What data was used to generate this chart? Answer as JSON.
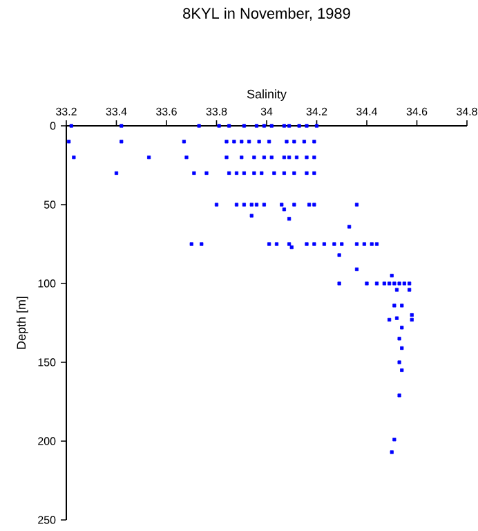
{
  "chart_data": {
    "type": "scatter",
    "title": "8KYL in November, 1989",
    "xlabel": "Salinity",
    "ylabel": "Depth [m]",
    "color": "#0000ff",
    "marker": "square",
    "grid": false,
    "x": [
      33.22,
      33.42,
      33.73,
      33.81,
      33.85,
      33.91,
      33.96,
      33.99,
      34.02,
      34.07,
      34.09,
      34.13,
      34.16,
      34.2,
      33.21,
      33.42,
      33.67,
      33.84,
      33.87,
      33.9,
      33.93,
      33.97,
      34.01,
      34.08,
      34.11,
      34.15,
      34.19,
      33.23,
      33.53,
      33.68,
      33.84,
      33.9,
      33.95,
      33.99,
      34.02,
      34.07,
      34.09,
      34.12,
      34.16,
      34.19,
      33.4,
      33.71,
      33.76,
      33.85,
      33.88,
      33.91,
      33.95,
      33.98,
      34.03,
      34.07,
      34.11,
      34.16,
      34.19,
      33.8,
      33.88,
      33.91,
      33.94,
      33.96,
      33.99,
      34.06,
      34.11,
      34.17,
      34.19,
      34.36,
      34.07,
      33.94,
      34.09,
      34.33,
      33.7,
      33.74,
      34.01,
      34.04,
      34.09,
      34.16,
      34.19,
      34.23,
      34.27,
      34.3,
      34.36,
      34.39,
      34.42,
      34.44,
      34.1,
      34.29,
      34.36,
      34.5,
      34.29,
      34.4,
      34.44,
      34.47,
      34.49,
      34.51,
      34.53,
      34.55,
      34.57,
      34.52,
      34.57,
      34.51,
      34.54,
      34.58,
      34.52,
      34.49,
      34.58,
      34.54,
      34.53,
      34.54,
      34.53,
      34.54,
      34.53,
      34.51,
      34.5
    ],
    "values": [
      0,
      0,
      0,
      0,
      0,
      0,
      0,
      0,
      0,
      0,
      0,
      0,
      0,
      0,
      10,
      10,
      10,
      10,
      10,
      10,
      10,
      10,
      10,
      10,
      10,
      10,
      10,
      20,
      20,
      20,
      20,
      20,
      20,
      20,
      20,
      20,
      20,
      20,
      20,
      20,
      30,
      30,
      30,
      30,
      30,
      30,
      30,
      30,
      30,
      30,
      30,
      30,
      30,
      50,
      50,
      50,
      50,
      50,
      50,
      50,
      50,
      50,
      50,
      50,
      53,
      57,
      59,
      64,
      75,
      75,
      75,
      75,
      75,
      75,
      75,
      75,
      75,
      75,
      75,
      75,
      75,
      75,
      77,
      82,
      91,
      95,
      100,
      100,
      100,
      100,
      100,
      100,
      100,
      100,
      100,
      104,
      104,
      114,
      114,
      120,
      122,
      123,
      123,
      128,
      135,
      141,
      150,
      155,
      171,
      199,
      207
    ],
    "xlim": [
      33.2,
      34.8
    ],
    "xticks": [
      33.2,
      33.4,
      33.6,
      33.8,
      34,
      34.2,
      34.4,
      34.6,
      34.8
    ],
    "ylim": [
      250,
      0
    ],
    "yticks": [
      0,
      50,
      100,
      150,
      200,
      250
    ]
  }
}
